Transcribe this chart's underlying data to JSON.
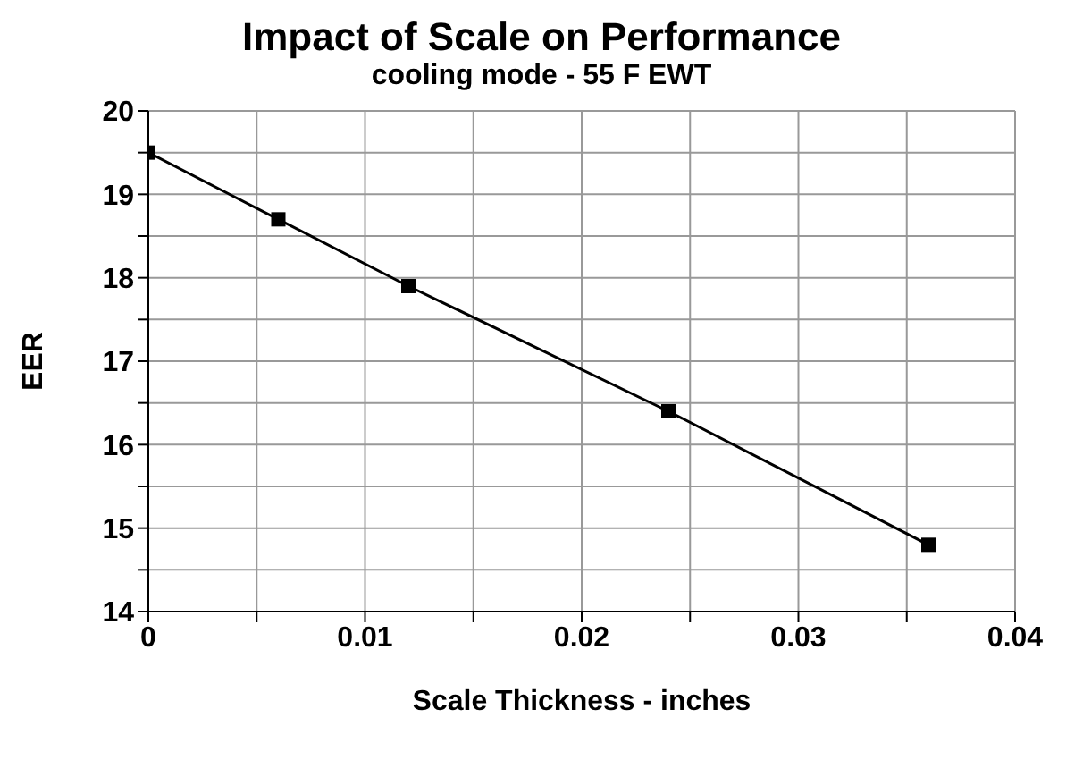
{
  "chart_data": {
    "type": "line",
    "title": "Impact of Scale on Performance",
    "subtitle": "cooling mode - 55 F EWT",
    "xlabel": "Scale Thickness - inches",
    "ylabel": "EER",
    "x": [
      0,
      0.006,
      0.012,
      0.024,
      0.036
    ],
    "series": [
      {
        "color": "#000000",
        "values": [
          19.5,
          18.7,
          17.9,
          16.4,
          14.8
        ]
      }
    ],
    "xlim": [
      0,
      0.04
    ],
    "xticks": [
      0,
      {
        "value": 0.005,
        "label": null
      },
      0.01,
      {
        "value": 0.015,
        "label": null
      },
      0.02,
      {
        "value": 0.025,
        "label": null
      },
      0.03,
      {
        "value": 0.035,
        "label": null
      },
      0.04
    ],
    "ylim": [
      14,
      20
    ],
    "yticks": [
      14,
      {
        "value": 14.5,
        "label": null
      },
      15,
      {
        "value": 15.5,
        "label": null
      },
      16,
      {
        "value": 16.5,
        "label": null
      },
      17,
      {
        "value": 17.5,
        "label": null
      },
      18,
      {
        "value": 18.5,
        "label": null
      },
      19,
      {
        "value": 19.5,
        "label": null
      },
      20
    ],
    "grid": true,
    "marker": "square",
    "line_style": "solid"
  }
}
